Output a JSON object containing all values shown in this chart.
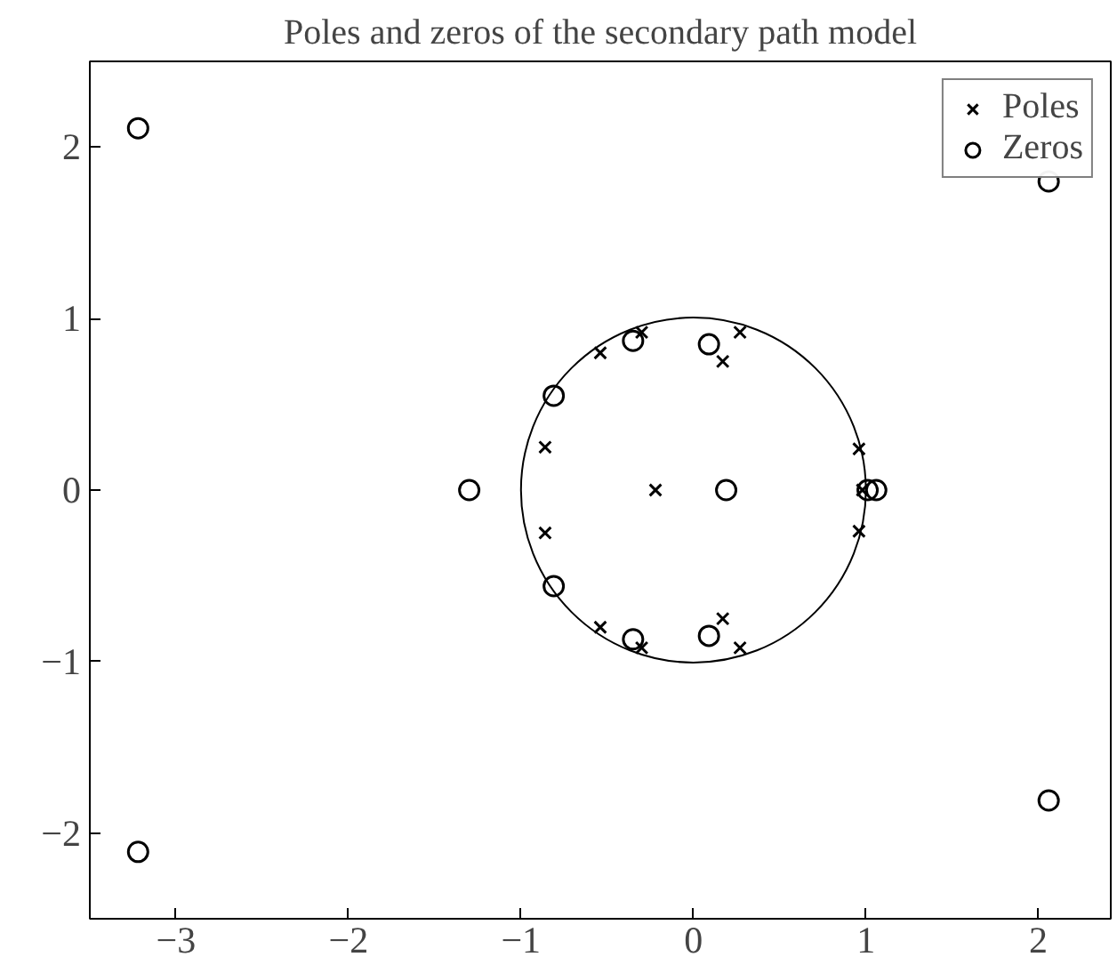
{
  "chart_data": {
    "type": "scatter",
    "title": "Poles and zeros of the secondary path model",
    "xlim": [
      -3.5,
      2.42
    ],
    "ylim": [
      -2.5,
      2.5
    ],
    "xticks": [
      -3,
      -2,
      -1,
      0,
      1,
      2
    ],
    "yticks": [
      -2,
      -1,
      0,
      1,
      2
    ],
    "grid": false,
    "legend": "top right",
    "series": [
      {
        "name": "Poles",
        "color": "#000000",
        "marker": "cross",
        "x": [
          -0.22,
          -0.86,
          -0.86,
          -0.54,
          -0.54,
          -0.3,
          -0.3,
          0.27,
          0.27,
          0.17,
          0.17,
          0.96,
          0.96,
          0.98
        ],
        "values": [
          0,
          0.25,
          -0.25,
          0.8,
          -0.8,
          0.92,
          -0.92,
          0.92,
          -0.92,
          0.75,
          -0.75,
          0.24,
          -0.24,
          0
        ]
      },
      {
        "name": "Zeros",
        "color": "#000000",
        "marker": "circle",
        "x": [
          -3.22,
          -3.22,
          2.06,
          2.06,
          -1.3,
          0.19,
          0.09,
          0.09,
          -0.35,
          -0.35,
          -0.81,
          -0.81,
          1.01,
          1.06
        ],
        "values": [
          2.11,
          -2.11,
          1.8,
          -1.81,
          0,
          0,
          0.85,
          -0.85,
          0.87,
          -0.87,
          0.55,
          -0.56,
          0,
          0
        ]
      }
    ]
  }
}
